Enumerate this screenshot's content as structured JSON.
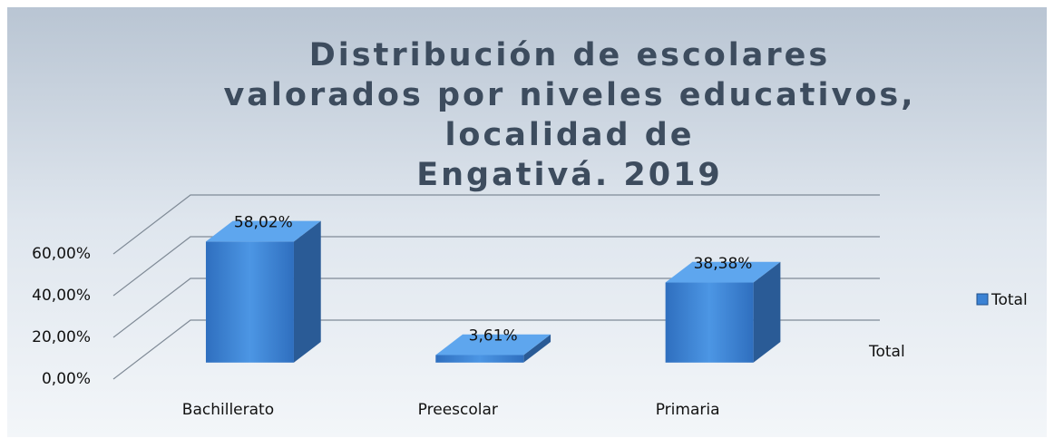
{
  "chart_data": {
    "type": "bar3d",
    "title": "Distribución de escolares valorados por niveles educativos, localidad de Engativá. 2019",
    "categories": [
      "Bachillerato",
      "Preescolar",
      "Primaria"
    ],
    "series": [
      {
        "name": "Total",
        "color": "#3b82d4",
        "values": [
          58.02,
          3.61,
          38.38
        ],
        "value_labels": [
          "58,02%",
          "3,61%",
          "38,38%"
        ]
      }
    ],
    "depth_label": "Total",
    "ylim": [
      0,
      60
    ],
    "yticks": [
      {
        "value": 0,
        "label": "0,00%"
      },
      {
        "value": 20,
        "label": "20,00%"
      },
      {
        "value": 40,
        "label": "40,00%"
      },
      {
        "value": 60,
        "label": "60,00%"
      }
    ],
    "grid": true,
    "legend": "right"
  }
}
